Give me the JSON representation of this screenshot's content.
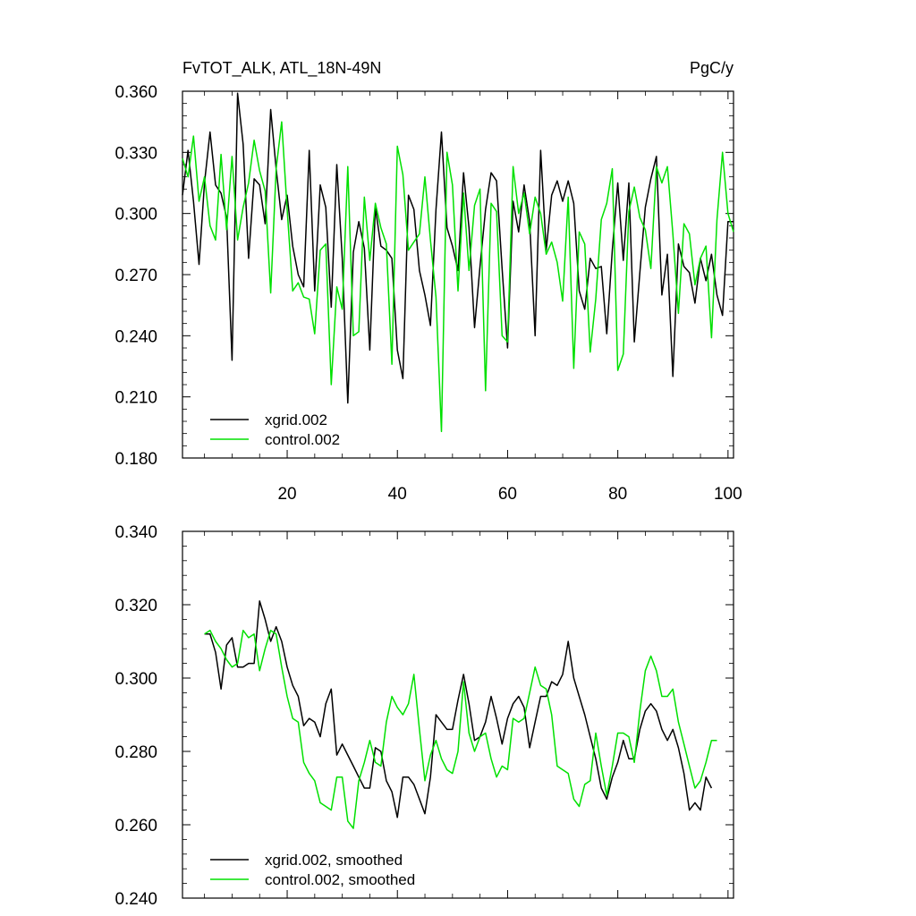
{
  "chart_data": [
    {
      "type": "line",
      "title": "FvTOT_ALK, ATL_18N-49N",
      "units": "PgC/y",
      "xlim": [
        1,
        101
      ],
      "ylim": [
        0.18,
        0.36
      ],
      "xticks": [
        20,
        40,
        60,
        80,
        100
      ],
      "yticks": [
        0.18,
        0.21,
        0.24,
        0.27,
        0.3,
        0.33,
        0.36
      ],
      "ytick_labels": [
        "0.180",
        "0.210",
        "0.240",
        "0.270",
        "0.300",
        "0.330",
        "0.360"
      ],
      "xtick_labels": [
        "20",
        "40",
        "60",
        "80",
        "100"
      ],
      "legend_position": "bottom-left",
      "series": [
        {
          "name": "xgrid.002",
          "color": "#000000",
          "x": [
            1,
            2,
            3,
            4,
            5,
            6,
            7,
            8,
            9,
            10,
            11,
            12,
            13,
            14,
            15,
            16,
            17,
            18,
            19,
            20,
            21,
            22,
            23,
            24,
            25,
            26,
            27,
            28,
            29,
            30,
            31,
            32,
            33,
            34,
            35,
            36,
            37,
            38,
            39,
            40,
            41,
            42,
            43,
            44,
            45,
            46,
            47,
            48,
            49,
            50,
            51,
            52,
            53,
            54,
            55,
            56,
            57,
            58,
            59,
            60,
            61,
            62,
            63,
            64,
            65,
            66,
            67,
            68,
            69,
            70,
            71,
            72,
            73,
            74,
            75,
            76,
            77,
            78,
            79,
            80,
            81,
            82,
            83,
            84,
            85,
            86,
            87,
            88,
            89,
            90,
            91,
            92,
            93,
            94,
            95,
            96,
            97,
            98,
            99,
            100,
            101
          ],
          "values": [
            0.309,
            0.331,
            0.306,
            0.275,
            0.315,
            0.34,
            0.314,
            0.31,
            0.298,
            0.228,
            0.359,
            0.334,
            0.278,
            0.317,
            0.314,
            0.295,
            0.351,
            0.322,
            0.297,
            0.309,
            0.284,
            0.27,
            0.264,
            0.331,
            0.262,
            0.314,
            0.303,
            0.254,
            0.324,
            0.278,
            0.207,
            0.281,
            0.296,
            0.283,
            0.233,
            0.303,
            0.284,
            0.282,
            0.278,
            0.233,
            0.219,
            0.309,
            0.302,
            0.272,
            0.26,
            0.245,
            0.302,
            0.34,
            0.293,
            0.284,
            0.272,
            0.32,
            0.293,
            0.244,
            0.274,
            0.302,
            0.32,
            0.316,
            0.273,
            0.234,
            0.306,
            0.291,
            0.314,
            0.296,
            0.24,
            0.331,
            0.282,
            0.309,
            0.316,
            0.306,
            0.316,
            0.305,
            0.262,
            0.253,
            0.278,
            0.273,
            0.274,
            0.241,
            0.282,
            0.315,
            0.277,
            0.315,
            0.237,
            0.271,
            0.303,
            0.317,
            0.328,
            0.26,
            0.28,
            0.22,
            0.285,
            0.274,
            0.271,
            0.256,
            0.278,
            0.267,
            0.28,
            0.26,
            0.25,
            0.296,
            0.296
          ]
        },
        {
          "name": "control.002",
          "color": "#00e000",
          "x": [
            1,
            2,
            3,
            4,
            5,
            6,
            7,
            8,
            9,
            10,
            11,
            12,
            13,
            14,
            15,
            16,
            17,
            18,
            19,
            20,
            21,
            22,
            23,
            24,
            25,
            26,
            27,
            28,
            29,
            30,
            31,
            32,
            33,
            34,
            35,
            36,
            37,
            38,
            39,
            40,
            41,
            42,
            43,
            44,
            45,
            46,
            47,
            48,
            49,
            50,
            51,
            52,
            53,
            54,
            55,
            56,
            57,
            58,
            59,
            60,
            61,
            62,
            63,
            64,
            65,
            66,
            67,
            68,
            69,
            70,
            71,
            72,
            73,
            74,
            75,
            76,
            77,
            78,
            79,
            80,
            81,
            82,
            83,
            84,
            85,
            86,
            87,
            88,
            89,
            90,
            91,
            92,
            93,
            94,
            95,
            96,
            97,
            98,
            99,
            100,
            101
          ],
          "values": [
            0.327,
            0.318,
            0.338,
            0.306,
            0.318,
            0.294,
            0.287,
            0.329,
            0.292,
            0.328,
            0.287,
            0.303,
            0.315,
            0.336,
            0.321,
            0.311,
            0.261,
            0.322,
            0.345,
            0.302,
            0.262,
            0.266,
            0.259,
            0.258,
            0.241,
            0.282,
            0.285,
            0.216,
            0.264,
            0.253,
            0.323,
            0.24,
            0.242,
            0.308,
            0.277,
            0.305,
            0.293,
            0.285,
            0.226,
            0.333,
            0.319,
            0.282,
            0.286,
            0.29,
            0.318,
            0.287,
            0.259,
            0.193,
            0.33,
            0.314,
            0.262,
            0.31,
            0.272,
            0.304,
            0.312,
            0.213,
            0.305,
            0.301,
            0.24,
            0.237,
            0.323,
            0.3,
            0.31,
            0.29,
            0.308,
            0.3,
            0.28,
            0.286,
            0.276,
            0.257,
            0.308,
            0.224,
            0.291,
            0.285,
            0.232,
            0.258,
            0.297,
            0.305,
            0.322,
            0.223,
            0.231,
            0.301,
            0.313,
            0.298,
            0.292,
            0.273,
            0.323,
            0.315,
            0.323,
            0.29,
            0.251,
            0.295,
            0.29,
            0.265,
            0.278,
            0.284,
            0.239,
            0.297,
            0.33,
            0.3,
            0.291
          ]
        }
      ],
      "grid": false
    },
    {
      "type": "line",
      "xlim": [
        1,
        101
      ],
      "ylim": [
        0.24,
        0.34
      ],
      "yticks": [
        0.24,
        0.26,
        0.28,
        0.3,
        0.32,
        0.34
      ],
      "ytick_labels": [
        "0.240",
        "0.260",
        "0.280",
        "0.300",
        "0.320",
        "0.340"
      ],
      "legend_position": "bottom-left",
      "series": [
        {
          "name": "xgrid.002, smoothed",
          "color": "#000000",
          "x": [
            5,
            6,
            7,
            8,
            9,
            10,
            11,
            12,
            13,
            14,
            15,
            16,
            17,
            18,
            19,
            20,
            21,
            22,
            23,
            24,
            25,
            26,
            27,
            28,
            29,
            30,
            31,
            32,
            33,
            34,
            35,
            36,
            37,
            38,
            39,
            40,
            41,
            42,
            43,
            44,
            45,
            46,
            47,
            48,
            49,
            50,
            51,
            52,
            53,
            54,
            55,
            56,
            57,
            58,
            59,
            60,
            61,
            62,
            63,
            64,
            65,
            66,
            67,
            68,
            69,
            70,
            71,
            72,
            73,
            74,
            75,
            76,
            77,
            78,
            79,
            80,
            81,
            82,
            83,
            84,
            85,
            86,
            87,
            88,
            89,
            90,
            91,
            92,
            93,
            94,
            95,
            96,
            97
          ],
          "values": [
            0.312,
            0.312,
            0.307,
            0.297,
            0.309,
            0.311,
            0.303,
            0.303,
            0.304,
            0.304,
            0.321,
            0.316,
            0.31,
            0.314,
            0.31,
            0.303,
            0.298,
            0.295,
            0.287,
            0.289,
            0.288,
            0.284,
            0.293,
            0.297,
            0.279,
            0.282,
            0.279,
            0.276,
            0.273,
            0.27,
            0.27,
            0.281,
            0.28,
            0.272,
            0.269,
            0.262,
            0.273,
            0.273,
            0.271,
            0.267,
            0.263,
            0.273,
            0.29,
            0.288,
            0.286,
            0.286,
            0.294,
            0.301,
            0.293,
            0.283,
            0.284,
            0.288,
            0.295,
            0.289,
            0.282,
            0.289,
            0.293,
            0.295,
            0.292,
            0.281,
            0.288,
            0.295,
            0.295,
            0.299,
            0.298,
            0.301,
            0.31,
            0.3,
            0.295,
            0.29,
            0.284,
            0.278,
            0.27,
            0.267,
            0.273,
            0.277,
            0.283,
            0.278,
            0.278,
            0.286,
            0.291,
            0.293,
            0.291,
            0.286,
            0.283,
            0.286,
            0.281,
            0.274,
            0.264,
            0.266,
            0.264,
            0.273,
            0.27
          ]
        },
        {
          "name": "control.002, smoothed",
          "color": "#00e000",
          "x": [
            5,
            6,
            7,
            8,
            9,
            10,
            11,
            12,
            13,
            14,
            15,
            16,
            17,
            18,
            19,
            20,
            21,
            22,
            23,
            24,
            25,
            26,
            27,
            28,
            29,
            30,
            31,
            32,
            33,
            34,
            35,
            36,
            37,
            38,
            39,
            40,
            41,
            42,
            43,
            44,
            45,
            46,
            47,
            48,
            49,
            50,
            51,
            52,
            53,
            54,
            55,
            56,
            57,
            58,
            59,
            60,
            61,
            62,
            63,
            64,
            65,
            66,
            67,
            68,
            69,
            70,
            71,
            72,
            73,
            74,
            75,
            76,
            77,
            78,
            79,
            80,
            81,
            82,
            83,
            84,
            85,
            86,
            87,
            88,
            89,
            90,
            91,
            92,
            93,
            94,
            95,
            96,
            97,
            98
          ],
          "values": [
            0.312,
            0.313,
            0.31,
            0.308,
            0.305,
            0.303,
            0.304,
            0.313,
            0.311,
            0.312,
            0.302,
            0.308,
            0.313,
            0.312,
            0.303,
            0.295,
            0.289,
            0.288,
            0.277,
            0.274,
            0.272,
            0.266,
            0.265,
            0.264,
            0.273,
            0.273,
            0.261,
            0.259,
            0.272,
            0.277,
            0.283,
            0.277,
            0.276,
            0.288,
            0.295,
            0.292,
            0.29,
            0.293,
            0.301,
            0.286,
            0.272,
            0.279,
            0.283,
            0.278,
            0.275,
            0.274,
            0.28,
            0.299,
            0.285,
            0.28,
            0.284,
            0.285,
            0.278,
            0.273,
            0.276,
            0.275,
            0.289,
            0.288,
            0.289,
            0.296,
            0.303,
            0.298,
            0.297,
            0.29,
            0.276,
            0.275,
            0.274,
            0.267,
            0.265,
            0.271,
            0.272,
            0.285,
            0.276,
            0.268,
            0.276,
            0.285,
            0.285,
            0.284,
            0.277,
            0.291,
            0.302,
            0.306,
            0.302,
            0.295,
            0.295,
            0.297,
            0.288,
            0.282,
            0.276,
            0.27,
            0.272,
            0.277,
            0.283,
            0.283
          ]
        }
      ],
      "grid": false
    }
  ]
}
